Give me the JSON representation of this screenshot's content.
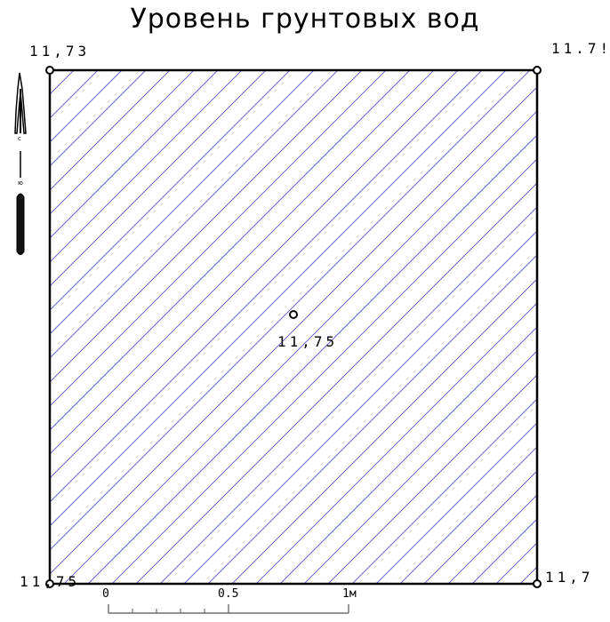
{
  "title": "Уровень грунтовых вод",
  "elevations": {
    "top_left": "11,73",
    "top_right": "11.7!",
    "center": "11,75",
    "bottom_left": "11,75",
    "bottom_right": "11,7"
  },
  "compass": {
    "north": "с",
    "south": "ю"
  },
  "scale_bar": {
    "zero": "0",
    "half": "0.5",
    "full": "1м"
  },
  "colors": {
    "hatch": "#6a6ad6",
    "outline": "#000000"
  }
}
